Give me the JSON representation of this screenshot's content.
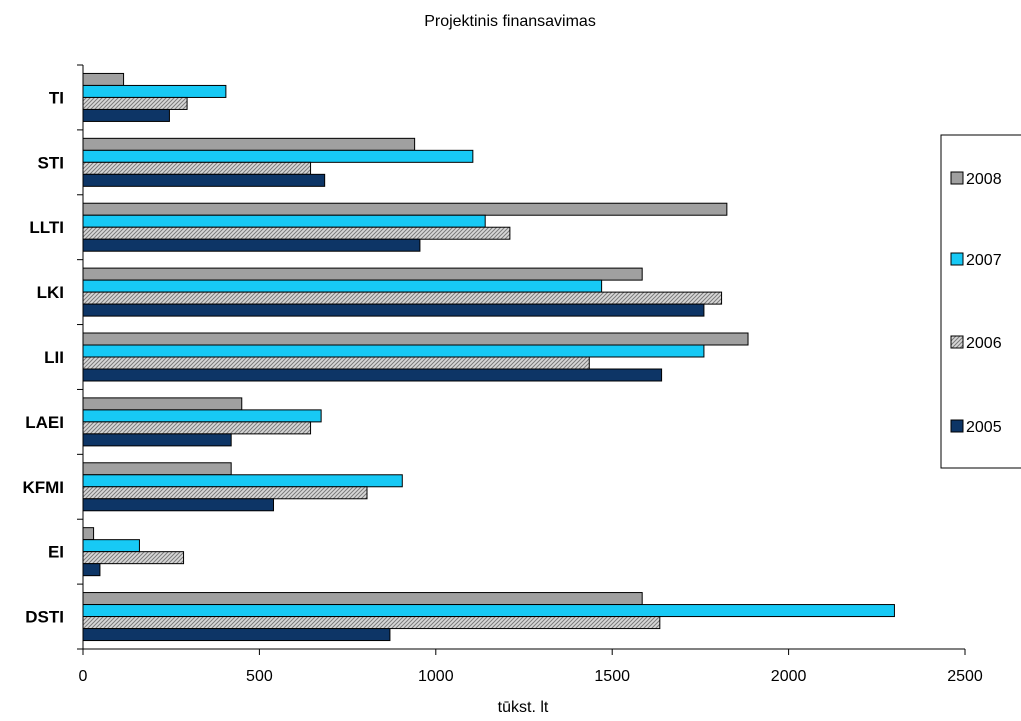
{
  "chart_data": {
    "type": "bar",
    "orientation": "horizontal",
    "title": "Projektinis finansavimas",
    "xlabel": "tūkst. lt",
    "ylabel": "",
    "xlim": [
      0,
      2500
    ],
    "xticks": [
      "0",
      "500",
      "1000",
      "1500",
      "2000",
      "2500"
    ],
    "grid": false,
    "legend_position": "right",
    "categories": [
      "TI",
      "STI",
      "LLTI",
      "LKI",
      "LII",
      "LAEI",
      "KFMI",
      "EI",
      "DSTI"
    ],
    "series": [
      {
        "name": "2008",
        "color": "#a0a0a0",
        "pattern": "solid",
        "values": [
          115,
          940,
          1825,
          1585,
          1885,
          450,
          420,
          30,
          1585
        ]
      },
      {
        "name": "2007",
        "color": "#17c9f5",
        "pattern": "solid",
        "values": [
          405,
          1105,
          1140,
          1470,
          1760,
          675,
          905,
          160,
          2300
        ]
      },
      {
        "name": "2006",
        "color": "#c8c8c8",
        "pattern": "hatched",
        "values": [
          295,
          645,
          1210,
          1810,
          1435,
          645,
          805,
          285,
          1635
        ]
      },
      {
        "name": "2005",
        "color": "#0d3566",
        "pattern": "solid",
        "values": [
          245,
          685,
          955,
          1760,
          1640,
          420,
          540,
          48,
          870
        ]
      }
    ]
  }
}
